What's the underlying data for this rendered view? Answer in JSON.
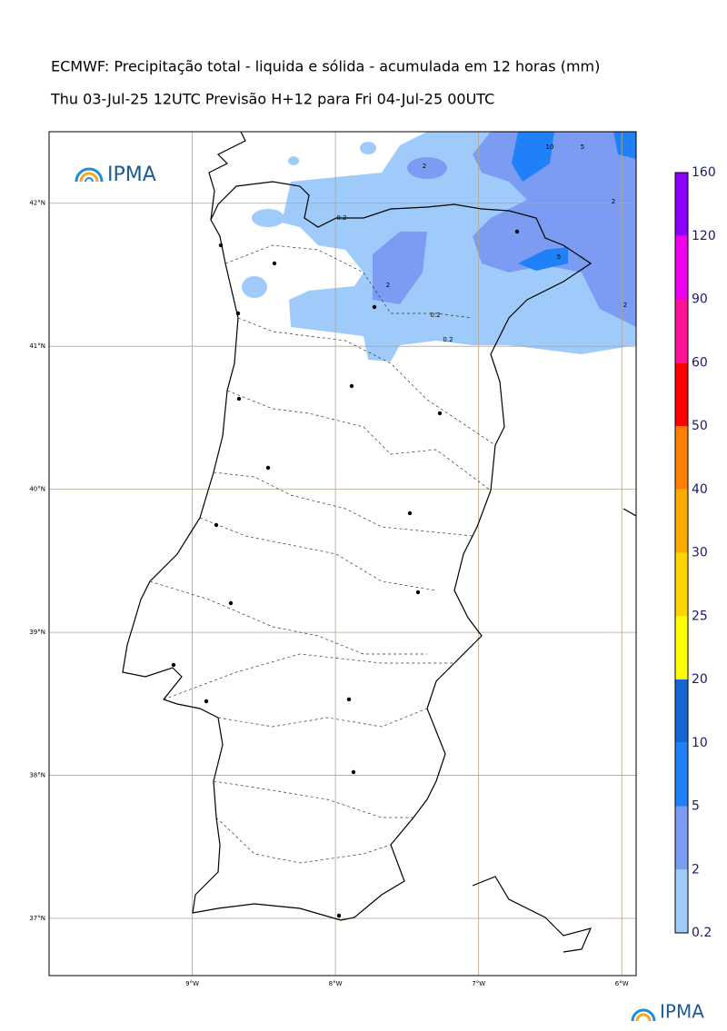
{
  "header": {
    "title": "ECMWF: Precipitação total - liquida e sólida - acumulada em 12 horas (mm)",
    "subtitle": "Thu 03-Jul-25 12UTC Previsão H+12 para Fri 04-Jul-25 00UTC"
  },
  "logo": {
    "text": "IPMA",
    "footer_text": "IPMA"
  },
  "map": {
    "lon_range": [
      -10,
      -5.9
    ],
    "lat_range": [
      36.6,
      42.5
    ],
    "lat_ticks": [
      {
        "value": 42,
        "label": "42°N"
      },
      {
        "value": 41,
        "label": "41°N"
      },
      {
        "value": 40,
        "label": "40°N"
      },
      {
        "value": 39,
        "label": "39°N"
      },
      {
        "value": 38,
        "label": "38°N"
      },
      {
        "value": 37,
        "label": "37°N"
      }
    ],
    "lon_ticks": [
      {
        "value": -9,
        "label": "9°W"
      },
      {
        "value": -8,
        "label": "8°W"
      },
      {
        "value": -7,
        "label": "7°W"
      },
      {
        "value": -6,
        "label": "6°W"
      }
    ],
    "contour_labels": [
      "2",
      "2",
      "0.2",
      "0.2",
      "0.2",
      "2",
      "2",
      "5",
      "10",
      "5"
    ]
  },
  "colorbar": {
    "levels": [
      0.2,
      2,
      5,
      10,
      20,
      25,
      30,
      40,
      50,
      60,
      90,
      120,
      160
    ],
    "colors": [
      "#9fcbfa",
      "#7b9cf2",
      "#1f80f7",
      "#1466d4",
      "#ffff00",
      "#ffd500",
      "#ffaa00",
      "#ff7f00",
      "#ff0000",
      "#ff1493",
      "#ee00ee",
      "#8b00ff"
    ]
  }
}
